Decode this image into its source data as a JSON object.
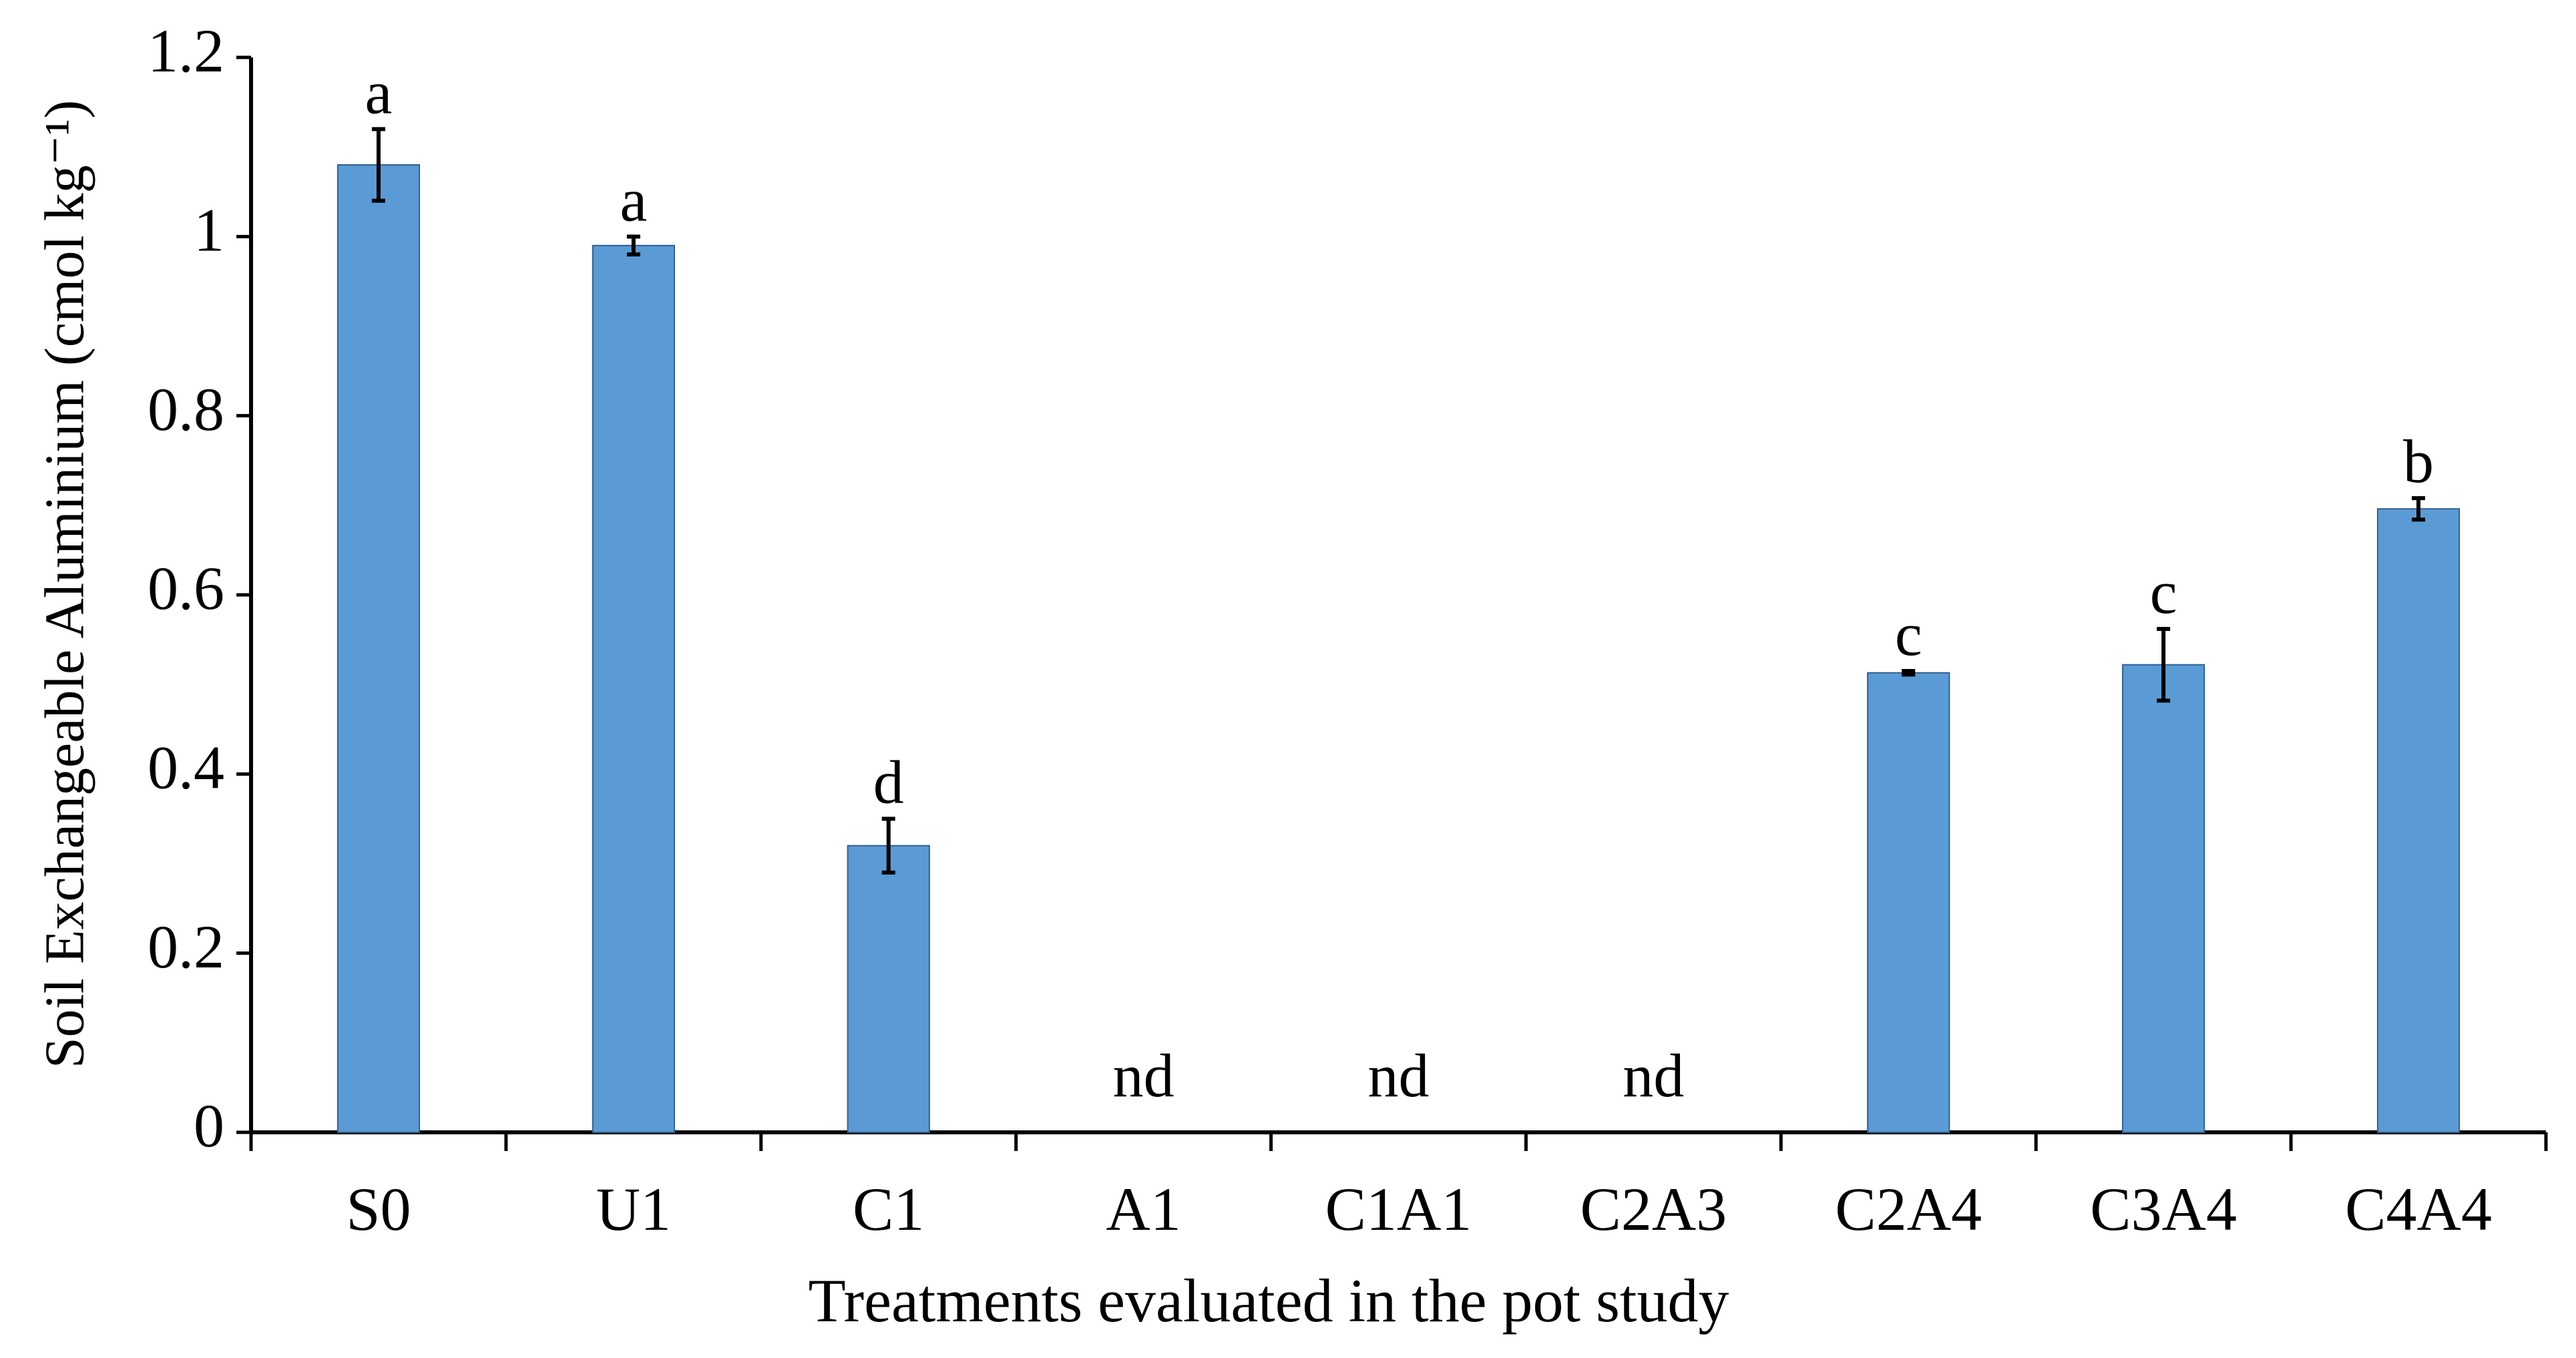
{
  "chart_data": {
    "type": "bar",
    "x_label": "Treatments evaluated in the pot study",
    "y_label": "Soil Exchangeable Aluminium (cmol kg⁻¹)",
    "categories": [
      "S0",
      "U1",
      "C1",
      "A1",
      "C1A1",
      "C2A3",
      "C2A4",
      "C3A4",
      "C4A4"
    ],
    "values": [
      1.08,
      0.99,
      0.32,
      null,
      null,
      null,
      0.513,
      0.522,
      0.696
    ],
    "errors": [
      0.04,
      0.01,
      0.03,
      null,
      null,
      null,
      0.002,
      0.04,
      0.012
    ],
    "annotations": [
      "a",
      "a",
      "d",
      "nd",
      "nd",
      "nd",
      "c",
      "c",
      "b"
    ],
    "color": "#5b9bd5",
    "ylim": [
      0,
      1.2
    ],
    "yticks": [
      0,
      0.2,
      0.4,
      0.6,
      0.8,
      1,
      1.2
    ],
    "grid": false
  }
}
